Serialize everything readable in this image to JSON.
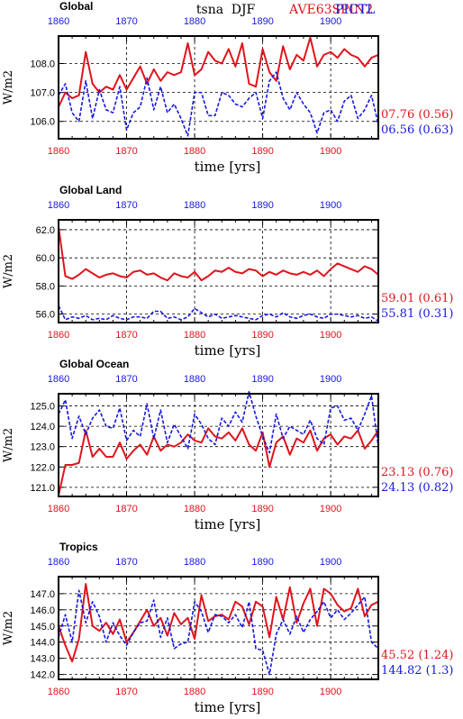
{
  "figure": {
    "variable": "tsna",
    "season": "DJF",
    "legend_exp": "AVE63SPIN2",
    "legend_ctl": "PICTL",
    "colors": {
      "exp": "#e0141c",
      "ctl": "#1818e0",
      "axis": "#000000",
      "grid": "#000000"
    }
  },
  "chart_data": [
    {
      "type": "line",
      "title": "Global",
      "xlabel": "time [yrs]",
      "ylabel": "W/m2",
      "xlim": [
        1860,
        1907
      ],
      "ylim": [
        105.4,
        108.95
      ],
      "xticks": [
        1860,
        1870,
        1880,
        1890,
        1900
      ],
      "yticks": [
        106.0,
        107.0,
        108.0
      ],
      "ytick_labels": [
        "106.0",
        "107.0",
        "108.0"
      ],
      "grid": true,
      "series": [
        {
          "role": "exp",
          "x_start": 1860,
          "values": [
            106.5,
            107.0,
            106.8,
            106.9,
            108.4,
            107.3,
            107.0,
            107.2,
            107.1,
            107.6,
            107.1,
            107.5,
            107.9,
            107.3,
            107.8,
            107.4,
            107.7,
            107.6,
            107.7,
            108.7,
            107.6,
            107.8,
            108.4,
            108.1,
            108.0,
            108.5,
            107.9,
            108.7,
            107.3,
            107.2,
            108.5,
            107.7,
            107.4,
            108.6,
            107.8,
            108.3,
            108.1,
            108.9,
            107.9,
            108.3,
            108.4,
            108.2,
            108.5,
            108.3,
            108.2,
            107.9,
            108.2,
            108.3
          ]
        },
        {
          "role": "ctl",
          "x_start": 1860,
          "values": [
            106.9,
            107.3,
            106.3,
            106.0,
            107.4,
            106.1,
            107.1,
            106.4,
            106.3,
            107.2,
            105.7,
            106.3,
            106.5,
            107.5,
            106.4,
            107.2,
            106.3,
            106.6,
            106.1,
            105.5,
            107.0,
            107.0,
            106.2,
            106.2,
            107.0,
            106.9,
            106.6,
            106.5,
            106.8,
            107.0,
            106.1,
            107.4,
            107.7,
            106.8,
            106.4,
            107.0,
            106.6,
            106.3,
            105.6,
            106.3,
            106.4,
            106.0,
            106.7,
            106.9,
            106.1,
            106.4,
            106.9,
            105.9
          ]
        }
      ],
      "annotations": [
        {
          "role": "exp",
          "text": "07.76 (0.56)"
        },
        {
          "role": "ctl",
          "text": "06.56 (0.63)"
        }
      ]
    },
    {
      "type": "line",
      "title": "Global Land",
      "xlabel": "time [yrs]",
      "ylabel": "W/m2",
      "xlim": [
        1860,
        1907
      ],
      "ylim": [
        55.4,
        62.7
      ],
      "xticks": [
        1860,
        1870,
        1880,
        1890,
        1900
      ],
      "yticks": [
        56.0,
        58.0,
        60.0,
        62.0
      ],
      "ytick_labels": [
        "56.0",
        "58.0",
        "60.0",
        "62.0"
      ],
      "grid": true,
      "series": [
        {
          "role": "exp",
          "x_start": 1860,
          "values": [
            62.2,
            58.7,
            58.5,
            58.8,
            59.2,
            58.9,
            58.6,
            58.8,
            58.9,
            58.7,
            58.6,
            59.0,
            59.1,
            58.8,
            58.9,
            58.6,
            58.4,
            58.9,
            58.7,
            58.6,
            59.0,
            58.4,
            58.7,
            59.1,
            59.0,
            59.3,
            59.0,
            58.9,
            59.2,
            59.1,
            58.7,
            59.0,
            58.8,
            59.1,
            58.9,
            58.8,
            59.0,
            58.8,
            59.1,
            58.7,
            59.2,
            59.6,
            59.4,
            59.2,
            59.0,
            59.4,
            59.2,
            58.8
          ]
        },
        {
          "role": "ctl",
          "x_start": 1860,
          "values": [
            56.6,
            55.6,
            55.8,
            55.7,
            55.9,
            55.6,
            55.7,
            55.6,
            55.9,
            55.7,
            55.6,
            55.8,
            55.8,
            55.7,
            56.2,
            56.2,
            55.7,
            55.8,
            55.6,
            55.8,
            56.4,
            56.1,
            55.8,
            56.0,
            55.7,
            55.8,
            55.9,
            55.8,
            55.7,
            55.6,
            55.9,
            56.0,
            55.8,
            56.1,
            55.8,
            55.7,
            55.9,
            56.0,
            55.8,
            55.7,
            56.0,
            56.0,
            55.9,
            55.8,
            55.9,
            55.7,
            55.8,
            55.5
          ]
        }
      ],
      "annotations": [
        {
          "role": "exp",
          "text": "59.01 (0.61)"
        },
        {
          "role": "ctl",
          "text": "55.81 (0.31)"
        }
      ]
    },
    {
      "type": "line",
      "title": "Global Ocean",
      "xlabel": "time [yrs]",
      "ylabel": "W/m2",
      "xlim": [
        1860,
        1907
      ],
      "ylim": [
        120.55,
        125.6
      ],
      "xticks": [
        1860,
        1870,
        1880,
        1890,
        1900
      ],
      "yticks": [
        121.0,
        122.0,
        123.0,
        124.0,
        125.0
      ],
      "ytick_labels": [
        "121.0",
        "122.0",
        "123.0",
        "124.0",
        "125.0"
      ],
      "grid": true,
      "series": [
        {
          "role": "exp",
          "x_start": 1860,
          "values": [
            120.6,
            122.1,
            122.1,
            122.2,
            123.8,
            122.5,
            122.9,
            122.5,
            122.5,
            123.2,
            122.4,
            122.8,
            123.1,
            122.6,
            123.5,
            122.8,
            123.1,
            123.0,
            123.2,
            123.6,
            123.3,
            123.2,
            123.9,
            123.5,
            123.4,
            123.7,
            123.3,
            123.9,
            123.1,
            122.8,
            123.7,
            122.0,
            123.2,
            123.5,
            122.6,
            123.4,
            123.2,
            123.8,
            122.8,
            123.4,
            123.6,
            123.1,
            123.5,
            123.4,
            123.8,
            122.9,
            123.3,
            123.8
          ]
        },
        {
          "role": "ctl",
          "x_start": 1860,
          "values": [
            124.6,
            125.3,
            123.4,
            124.5,
            123.6,
            124.4,
            124.8,
            124.0,
            123.9,
            124.9,
            123.3,
            123.8,
            123.5,
            125.1,
            123.4,
            124.8,
            123.2,
            124.1,
            123.5,
            122.9,
            124.6,
            124.1,
            123.4,
            123.1,
            124.4,
            124.0,
            124.7,
            124.2,
            125.7,
            124.5,
            123.5,
            122.7,
            124.6,
            123.4,
            124.0,
            123.8,
            123.6,
            124.3,
            123.4,
            123.1,
            124.9,
            125.0,
            124.3,
            124.4,
            123.8,
            124.6,
            125.5,
            123.0
          ]
        }
      ],
      "annotations": [
        {
          "role": "exp",
          "text": "23.13 (0.76)"
        },
        {
          "role": "ctl",
          "text": "24.13 (0.82)"
        }
      ]
    },
    {
      "type": "line",
      "title": "Tropics",
      "xlabel": "time [yrs]",
      "ylabel": "W/m2",
      "xlim": [
        1860,
        1907
      ],
      "ylim": [
        141.7,
        148.05
      ],
      "xticks": [
        1860,
        1870,
        1880,
        1890,
        1900
      ],
      "yticks": [
        142.0,
        143.0,
        144.0,
        145.0,
        146.0,
        147.0
      ],
      "ytick_labels": [
        "142.0",
        "143.0",
        "144.0",
        "145.0",
        "146.0",
        "147.0"
      ],
      "grid": true,
      "series": [
        {
          "role": "exp",
          "x_start": 1860,
          "values": [
            145.0,
            143.8,
            142.8,
            144.2,
            147.6,
            145.0,
            144.7,
            145.2,
            144.5,
            145.4,
            144.0,
            144.6,
            145.3,
            146.0,
            145.0,
            145.5,
            144.4,
            145.8,
            145.1,
            145.5,
            144.2,
            146.9,
            145.3,
            145.6,
            145.7,
            145.4,
            146.5,
            146.2,
            145.1,
            146.5,
            146.2,
            144.3,
            146.8,
            145.4,
            147.4,
            145.2,
            146.4,
            147.3,
            145.0,
            147.3,
            147.0,
            146.3,
            145.9,
            146.1,
            147.3,
            145.6,
            146.3,
            146.5
          ]
        },
        {
          "role": "ctl",
          "x_start": 1860,
          "values": [
            144.3,
            145.7,
            144.0,
            147.2,
            145.2,
            146.5,
            145.6,
            144.0,
            145.2,
            144.4,
            143.8,
            144.6,
            145.2,
            145.3,
            146.6,
            144.3,
            145.5,
            143.6,
            143.9,
            144.0,
            146.5,
            145.9,
            144.6,
            145.7,
            145.6,
            145.2,
            145.7,
            144.9,
            146.5,
            143.6,
            143.5,
            142.0,
            144.5,
            145.4,
            144.5,
            145.6,
            144.6,
            145.4,
            145.9,
            146.5,
            145.5,
            146.0,
            145.4,
            145.8,
            146.3,
            146.8,
            144.0,
            143.6
          ]
        }
      ],
      "annotations": [
        {
          "role": "exp",
          "text": "45.52 (1.24)"
        },
        {
          "role": "ctl",
          "text": "144.82 (1.3)"
        }
      ]
    }
  ]
}
